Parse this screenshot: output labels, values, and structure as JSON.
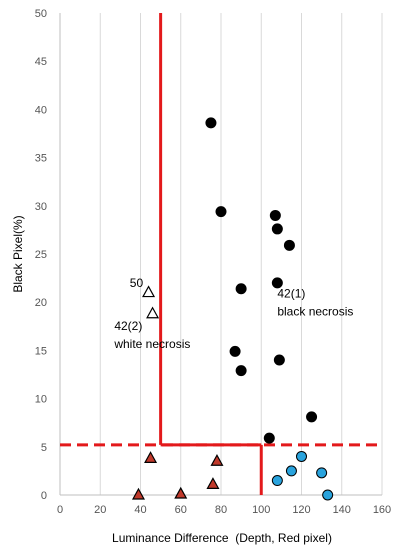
{
  "chart_data": {
    "type": "scatter",
    "xlabel": "Luminance Difference  (Depth, Red pixel)",
    "ylabel": "Black Pixel(%)",
    "xlim": [
      0,
      160
    ],
    "ylim": [
      0,
      50
    ],
    "x_ticks": [
      0,
      20,
      40,
      60,
      80,
      100,
      120,
      140,
      160
    ],
    "y_ticks": [
      0,
      5,
      10,
      15,
      20,
      25,
      30,
      35,
      40,
      45,
      50
    ],
    "grid": "vertical",
    "series": [
      {
        "marker": "circle-black",
        "color": "#000000",
        "points": [
          {
            "x": 75,
            "y": 38.6
          },
          {
            "x": 80,
            "y": 29.4
          },
          {
            "x": 107,
            "y": 29.0
          },
          {
            "x": 108,
            "y": 27.6
          },
          {
            "x": 114,
            "y": 25.9
          },
          {
            "x": 108,
            "y": 22.0
          },
          {
            "x": 90,
            "y": 21.4
          },
          {
            "x": 87,
            "y": 14.9
          },
          {
            "x": 109,
            "y": 14.0
          },
          {
            "x": 90,
            "y": 12.9
          },
          {
            "x": 125,
            "y": 8.1
          },
          {
            "x": 104,
            "y": 5.9
          }
        ]
      },
      {
        "marker": "circle-blue",
        "color": "#29a3dd",
        "points": [
          {
            "x": 120,
            "y": 4.0
          },
          {
            "x": 115,
            "y": 2.5
          },
          {
            "x": 130,
            "y": 2.3
          },
          {
            "x": 108,
            "y": 1.5
          },
          {
            "x": 133,
            "y": 0.0
          }
        ]
      },
      {
        "marker": "triangle-red",
        "color": "#c0392b",
        "points": [
          {
            "x": 45,
            "y": 3.8
          },
          {
            "x": 78,
            "y": 3.5
          },
          {
            "x": 76,
            "y": 1.1
          },
          {
            "x": 39,
            "y": 0.0
          },
          {
            "x": 60,
            "y": 0.1
          }
        ]
      },
      {
        "marker": "triangle-open",
        "color": "#000000",
        "points": [
          {
            "x": 44,
            "y": 21.0
          },
          {
            "x": 46,
            "y": 18.8
          }
        ]
      }
    ],
    "threshold_lines": [
      {
        "axis": "x",
        "value": 50,
        "from": 5.2,
        "to": 50,
        "style": "solid",
        "color": "#e3191b"
      },
      {
        "axis": "y",
        "value": 5.2,
        "from": 0,
        "to": 160,
        "style": "dashed",
        "color": "#e3191b"
      },
      {
        "axis": "x",
        "value": 100,
        "from": 0,
        "to": 5.2,
        "style": "solid",
        "color": "#e3191b"
      },
      {
        "axis": "y",
        "value": 5.2,
        "from": 50,
        "to": 100,
        "style": "solid",
        "color": "#e3191b"
      }
    ],
    "annotations": [
      {
        "lines": [
          "50"
        ],
        "x": 38,
        "y": 21.6,
        "anchor": "middle"
      },
      {
        "lines": [
          "42(2)",
          "white necrosis"
        ],
        "x": 27,
        "y": 17.1,
        "anchor": "start"
      },
      {
        "lines": [
          "42(1)",
          "black necrosis"
        ],
        "x": 108,
        "y": 20.5,
        "anchor": "start"
      }
    ]
  }
}
